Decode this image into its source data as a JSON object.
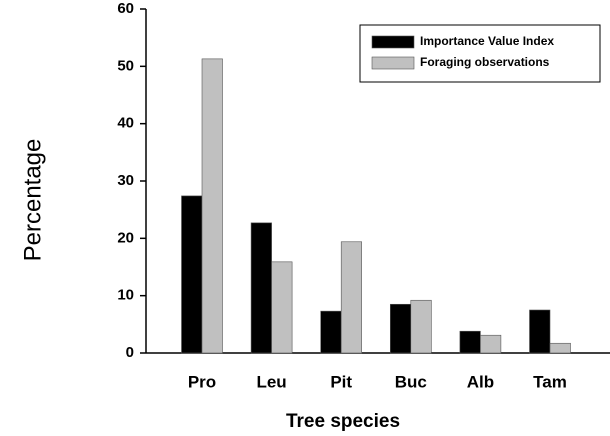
{
  "chart_data": {
    "type": "bar",
    "y_label": "Percentage",
    "x_label": "Tree species",
    "categories": [
      "Pro",
      "Leu",
      "Pit",
      "Buc",
      "Alb",
      "Tam"
    ],
    "series": [
      {
        "name": "Importance Value Index",
        "color": "#000000",
        "values": [
          27.4,
          22.7,
          7.3,
          8.5,
          3.8,
          7.5
        ]
      },
      {
        "name": "Foraging observations",
        "color": "#c0c0c0",
        "values": [
          51.3,
          15.9,
          19.4,
          9.2,
          3.1,
          1.7
        ]
      }
    ],
    "ylim": [
      0,
      60
    ],
    "yticks": [
      0,
      10,
      20,
      30,
      40,
      50,
      60
    ],
    "legend": "upper right"
  }
}
